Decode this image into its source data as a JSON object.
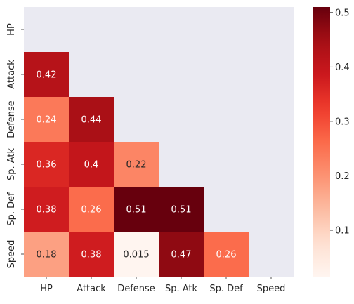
{
  "chart_data": {
    "type": "heatmap",
    "colormap": "Reds",
    "row_labels": [
      "HP",
      "Attack",
      "Defense",
      "Sp. Atk",
      "Sp. Def",
      "Speed"
    ],
    "col_labels": [
      "HP",
      "Attack",
      "Defense",
      "Sp. Atk",
      "Sp. Def",
      "Speed"
    ],
    "mask": "upper triangle incl. diagonal",
    "cells": [
      {
        "row": 1,
        "col": 0,
        "value": 0.42,
        "label": "0.42"
      },
      {
        "row": 2,
        "col": 0,
        "value": 0.24,
        "label": "0.24"
      },
      {
        "row": 2,
        "col": 1,
        "value": 0.44,
        "label": "0.44"
      },
      {
        "row": 3,
        "col": 0,
        "value": 0.36,
        "label": "0.36"
      },
      {
        "row": 3,
        "col": 1,
        "value": 0.4,
        "label": "0.4"
      },
      {
        "row": 3,
        "col": 2,
        "value": 0.22,
        "label": "0.22"
      },
      {
        "row": 4,
        "col": 0,
        "value": 0.38,
        "label": "0.38"
      },
      {
        "row": 4,
        "col": 1,
        "value": 0.26,
        "label": "0.26"
      },
      {
        "row": 4,
        "col": 2,
        "value": 0.51,
        "label": "0.51"
      },
      {
        "row": 4,
        "col": 3,
        "value": 0.51,
        "label": "0.51"
      },
      {
        "row": 5,
        "col": 0,
        "value": 0.18,
        "label": "0.18"
      },
      {
        "row": 5,
        "col": 1,
        "value": 0.38,
        "label": "0.38"
      },
      {
        "row": 5,
        "col": 2,
        "value": 0.015,
        "label": "0.015"
      },
      {
        "row": 5,
        "col": 3,
        "value": 0.47,
        "label": "0.47"
      },
      {
        "row": 5,
        "col": 4,
        "value": 0.26,
        "label": "0.26"
      }
    ],
    "colorbar": {
      "range": [
        0.015,
        0.51
      ],
      "ticks": [
        0.1,
        0.2,
        0.3,
        0.4,
        0.5
      ],
      "tick_labels": [
        "0.1",
        "0.2",
        "0.3",
        "0.4",
        "0.5"
      ]
    },
    "title": "",
    "xlabel": "",
    "ylabel": "",
    "colors": {
      "masked_background": "#eaeaf2",
      "text_dark": "#262626",
      "text_light": "#ffffff"
    }
  }
}
